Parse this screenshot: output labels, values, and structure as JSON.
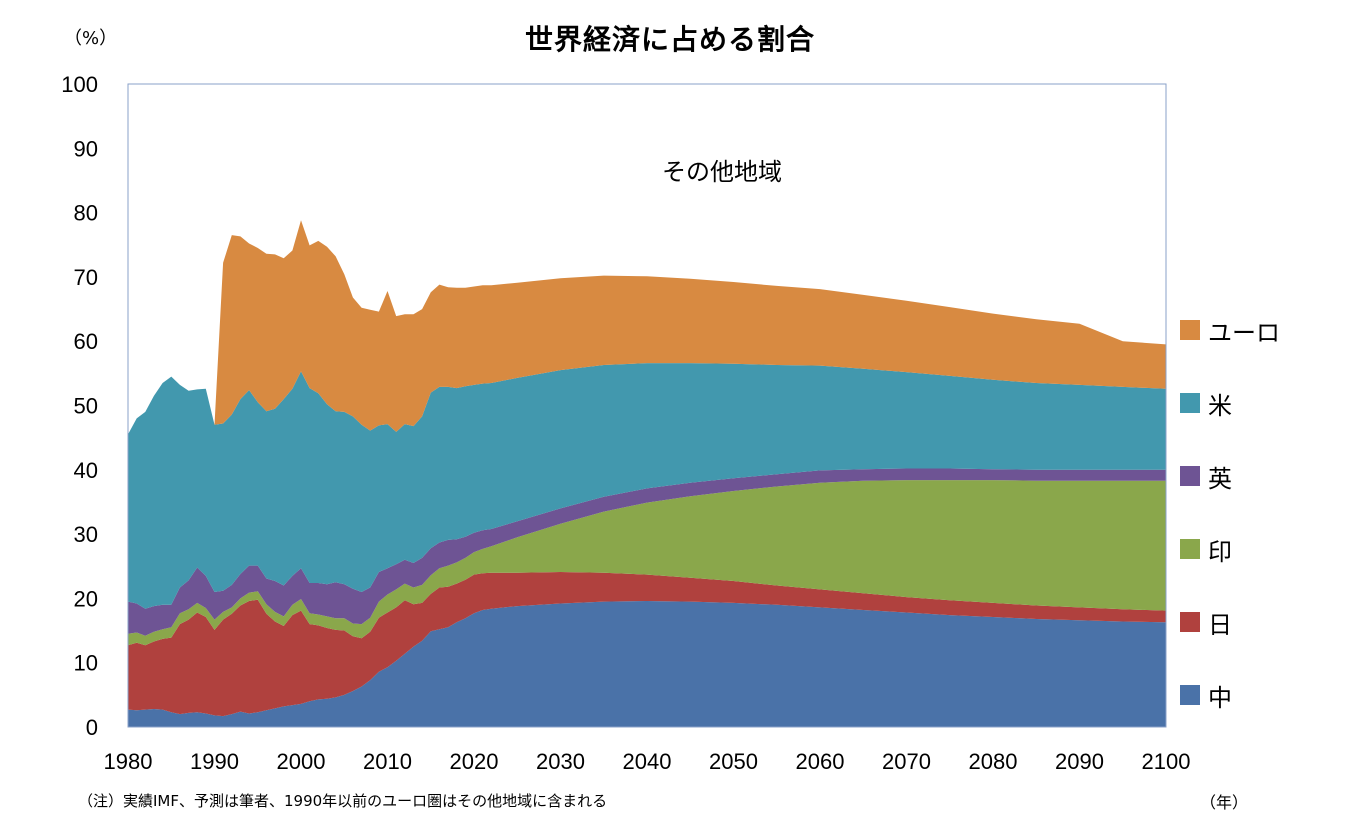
{
  "chart_data": {
    "type": "area",
    "stacked": true,
    "title": "世界経済に占める割合",
    "y_unit_label": "（%）",
    "x_unit_label": "（年）",
    "region_label": "その他地域",
    "footnote": "（注）実績IMF、予測は筆者、1990年以前のユーロ圏はその他地域に含まれる",
    "xlim": [
      1980,
      2100
    ],
    "ylim": [
      0,
      100
    ],
    "xticks": [
      1980,
      1990,
      2000,
      2010,
      2020,
      2030,
      2040,
      2050,
      2060,
      2070,
      2080,
      2090,
      2100
    ],
    "yticks": [
      0,
      10,
      20,
      30,
      40,
      50,
      60,
      70,
      80,
      90,
      100
    ],
    "legend_position": "right",
    "x": [
      1980,
      1981,
      1982,
      1983,
      1984,
      1985,
      1986,
      1987,
      1988,
      1989,
      1990,
      1991,
      1992,
      1993,
      1994,
      1995,
      1996,
      1997,
      1998,
      1999,
      2000,
      2001,
      2002,
      2003,
      2004,
      2005,
      2006,
      2007,
      2008,
      2009,
      2010,
      2011,
      2012,
      2013,
      2014,
      2015,
      2016,
      2017,
      2018,
      2019,
      2020,
      2021,
      2022,
      2025,
      2030,
      2035,
      2040,
      2045,
      2050,
      2055,
      2060,
      2065,
      2070,
      2075,
      2080,
      2085,
      2090,
      2095,
      2100
    ],
    "series": [
      {
        "name": "中",
        "color": "#4a72a8",
        "values": [
          2.7,
          2.6,
          2.7,
          2.8,
          2.7,
          2.3,
          2.0,
          2.2,
          2.3,
          2.1,
          1.8,
          1.7,
          2.0,
          2.4,
          2.1,
          2.3,
          2.6,
          2.9,
          3.2,
          3.4,
          3.6,
          4.0,
          4.3,
          4.4,
          4.6,
          5.0,
          5.6,
          6.3,
          7.3,
          8.6,
          9.3,
          10.3,
          11.4,
          12.5,
          13.4,
          14.9,
          15.2,
          15.5,
          16.3,
          16.9,
          17.7,
          18.2,
          18.4,
          18.8,
          19.2,
          19.5,
          19.6,
          19.5,
          19.3,
          19.0,
          18.6,
          18.2,
          17.8,
          17.4,
          17.1,
          16.8,
          16.6,
          16.4,
          16.3
        ]
      },
      {
        "name": "日",
        "color": "#b0413e",
        "values": [
          10.0,
          10.5,
          10.0,
          10.5,
          11.0,
          11.6,
          14.0,
          14.5,
          15.5,
          15.0,
          13.3,
          15.0,
          15.6,
          16.5,
          17.5,
          17.5,
          15.0,
          13.5,
          12.5,
          14.0,
          14.5,
          12.0,
          11.5,
          11.0,
          10.5,
          10.0,
          8.5,
          7.5,
          7.5,
          8.4,
          8.5,
          8.3,
          8.3,
          6.6,
          5.9,
          5.8,
          6.5,
          6.3,
          6.0,
          6.0,
          6.0,
          5.7,
          5.6,
          5.2,
          4.9,
          4.5,
          4.1,
          3.7,
          3.4,
          3.0,
          2.8,
          2.6,
          2.4,
          2.3,
          2.2,
          2.1,
          2.0,
          1.9,
          1.8
        ]
      },
      {
        "name": "印",
        "color": "#8aa74b",
        "values": [
          1.8,
          1.6,
          1.5,
          1.5,
          1.5,
          1.6,
          1.7,
          1.6,
          1.5,
          1.4,
          1.6,
          1.2,
          1.0,
          1.1,
          1.3,
          1.3,
          1.5,
          1.5,
          1.5,
          1.6,
          1.8,
          1.7,
          1.7,
          1.8,
          1.8,
          1.9,
          2.0,
          2.2,
          2.2,
          2.5,
          2.8,
          2.8,
          2.6,
          2.6,
          2.8,
          2.9,
          3.0,
          3.3,
          3.3,
          3.4,
          3.5,
          3.8,
          4.1,
          5.5,
          7.5,
          9.5,
          11.2,
          12.7,
          14.0,
          15.4,
          16.6,
          17.5,
          18.2,
          18.7,
          19.1,
          19.4,
          19.7,
          20.0,
          20.2
        ]
      },
      {
        "name": "英",
        "color": "#6e5494",
        "values": [
          5.0,
          4.5,
          4.2,
          4.0,
          3.8,
          3.5,
          4.0,
          4.5,
          5.5,
          5.0,
          4.3,
          3.3,
          3.5,
          3.8,
          4.2,
          4.0,
          4.0,
          4.8,
          4.8,
          4.5,
          4.8,
          4.7,
          4.9,
          5.0,
          5.6,
          5.3,
          5.4,
          5.0,
          4.7,
          4.6,
          4.1,
          3.9,
          3.7,
          3.8,
          4.2,
          4.2,
          4.0,
          4.0,
          3.6,
          3.3,
          3.0,
          2.9,
          2.7,
          2.5,
          2.4,
          2.3,
          2.2,
          2.1,
          2.0,
          1.9,
          1.9,
          1.8,
          1.8,
          1.8,
          1.7,
          1.7,
          1.7,
          1.7,
          1.7
        ]
      },
      {
        "name": "米",
        "color": "#4298ae",
        "values": [
          26.0,
          28.8,
          30.6,
          32.7,
          34.5,
          35.5,
          31.5,
          29.5,
          27.7,
          29.1,
          26.0,
          26.0,
          26.5,
          27.2,
          27.3,
          25.4,
          26.0,
          26.8,
          29.0,
          29.1,
          30.6,
          30.3,
          29.5,
          28.0,
          26.6,
          26.8,
          26.8,
          26.0,
          24.4,
          22.8,
          22.4,
          20.6,
          21.1,
          21.3,
          22.0,
          24.2,
          24.2,
          23.8,
          23.5,
          23.4,
          23.0,
          22.8,
          22.7,
          22.3,
          21.5,
          20.5,
          19.5,
          18.6,
          17.8,
          17.0,
          16.3,
          15.6,
          15.0,
          14.4,
          13.9,
          13.5,
          13.2,
          12.9,
          12.6
        ]
      },
      {
        "name": "ユーロ",
        "color": "#d88a41",
        "values": [
          0,
          0,
          0,
          0,
          0,
          0,
          0,
          0,
          0,
          0,
          0,
          25.0,
          27.9,
          25.3,
          22.8,
          24.0,
          24.5,
          24.0,
          21.9,
          21.5,
          23.5,
          22.2,
          23.7,
          24.5,
          24.1,
          21.4,
          18.5,
          18.2,
          18.8,
          17.7,
          20.7,
          18.0,
          17.1,
          17.4,
          16.7,
          15.6,
          15.9,
          15.5,
          15.6,
          15.3,
          15.3,
          15.3,
          15.2,
          14.8,
          14.3,
          13.9,
          13.5,
          13.1,
          12.7,
          12.3,
          11.9,
          11.5,
          11.1,
          10.7,
          10.3,
          9.9,
          9.5,
          7.1,
          6.9
        ]
      }
    ]
  }
}
